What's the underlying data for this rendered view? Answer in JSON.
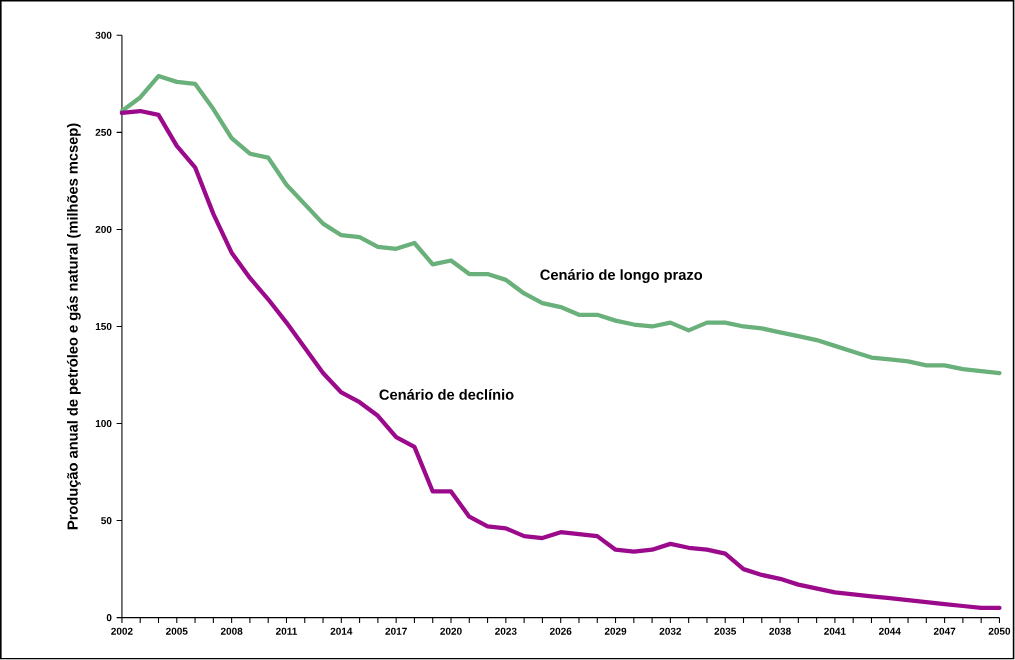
{
  "chart_data": {
    "type": "line",
    "ylabel": "Produção anual de petróleo e gás natural (milhões mcsep)",
    "x": [
      2002,
      2003,
      2004,
      2005,
      2006,
      2007,
      2008,
      2009,
      2010,
      2011,
      2012,
      2013,
      2014,
      2015,
      2016,
      2017,
      2018,
      2019,
      2020,
      2021,
      2022,
      2023,
      2024,
      2025,
      2026,
      2027,
      2028,
      2029,
      2030,
      2031,
      2032,
      2033,
      2034,
      2035,
      2036,
      2037,
      2038,
      2039,
      2040,
      2041,
      2042,
      2043,
      2044,
      2045,
      2046,
      2047,
      2048,
      2049,
      2050
    ],
    "series": [
      {
        "name": "Cenário de longo prazo",
        "color": "#6ab07a",
        "values": [
          261,
          268,
          279,
          276,
          275,
          262,
          247,
          239,
          237,
          223,
          213,
          203,
          197,
          196,
          191,
          190,
          193,
          182,
          184,
          177,
          177,
          174,
          167,
          162,
          160,
          156,
          156,
          153,
          151,
          150,
          152,
          148,
          152,
          152,
          150,
          149,
          147,
          145,
          143,
          140,
          137,
          134,
          133,
          132,
          130,
          130,
          128,
          127,
          126
        ]
      },
      {
        "name": "Cenário de declínio",
        "color": "#9c0a8c",
        "values": [
          260,
          261,
          259,
          243,
          232,
          208,
          188,
          175,
          164,
          152,
          139,
          126,
          116,
          111,
          104,
          93,
          88,
          65,
          65,
          52,
          47,
          46,
          42,
          41,
          44,
          43,
          42,
          35,
          34,
          35,
          38,
          36,
          35,
          33,
          25,
          22,
          20,
          17,
          15,
          13,
          12,
          11,
          10,
          9,
          8,
          7,
          6,
          5,
          5
        ]
      }
    ],
    "xlim": [
      2002,
      2050
    ],
    "ylim": [
      0,
      300
    ],
    "xticks": [
      2002,
      {
        "value": 2003,
        "label": null
      },
      {
        "value": 2004,
        "label": null
      },
      2005,
      {
        "value": 2006,
        "label": null
      },
      {
        "value": 2007,
        "label": null
      },
      2008,
      {
        "value": 2009,
        "label": null
      },
      {
        "value": 2010,
        "label": null
      },
      2011,
      {
        "value": 2012,
        "label": null
      },
      {
        "value": 2013,
        "label": null
      },
      2014,
      {
        "value": 2015,
        "label": null
      },
      {
        "value": 2016,
        "label": null
      },
      2017,
      {
        "value": 2018,
        "label": null
      },
      {
        "value": 2019,
        "label": null
      },
      2020,
      {
        "value": 2021,
        "label": null
      },
      {
        "value": 2022,
        "label": null
      },
      2023,
      {
        "value": 2024,
        "label": null
      },
      {
        "value": 2025,
        "label": null
      },
      2026,
      {
        "value": 2027,
        "label": null
      },
      {
        "value": 2028,
        "label": null
      },
      2029,
      {
        "value": 2030,
        "label": null
      },
      {
        "value": 2031,
        "label": null
      },
      2032,
      {
        "value": 2033,
        "label": null
      },
      {
        "value": 2034,
        "label": null
      },
      2035,
      {
        "value": 2036,
        "label": null
      },
      {
        "value": 2037,
        "label": null
      },
      2038,
      {
        "value": 2039,
        "label": null
      },
      {
        "value": 2040,
        "label": null
      },
      2041,
      {
        "value": 2042,
        "label": null
      },
      {
        "value": 2043,
        "label": null
      },
      2044,
      {
        "value": 2045,
        "label": null
      },
      {
        "value": 2046,
        "label": null
      },
      2047,
      {
        "value": 2048,
        "label": null
      },
      {
        "value": 2049,
        "label": null
      },
      2050
    ],
    "yticks": [
      0,
      50,
      100,
      150,
      200,
      250,
      300
    ],
    "grid": false,
    "legend": false,
    "marker": "none",
    "line_style": "solid"
  }
}
